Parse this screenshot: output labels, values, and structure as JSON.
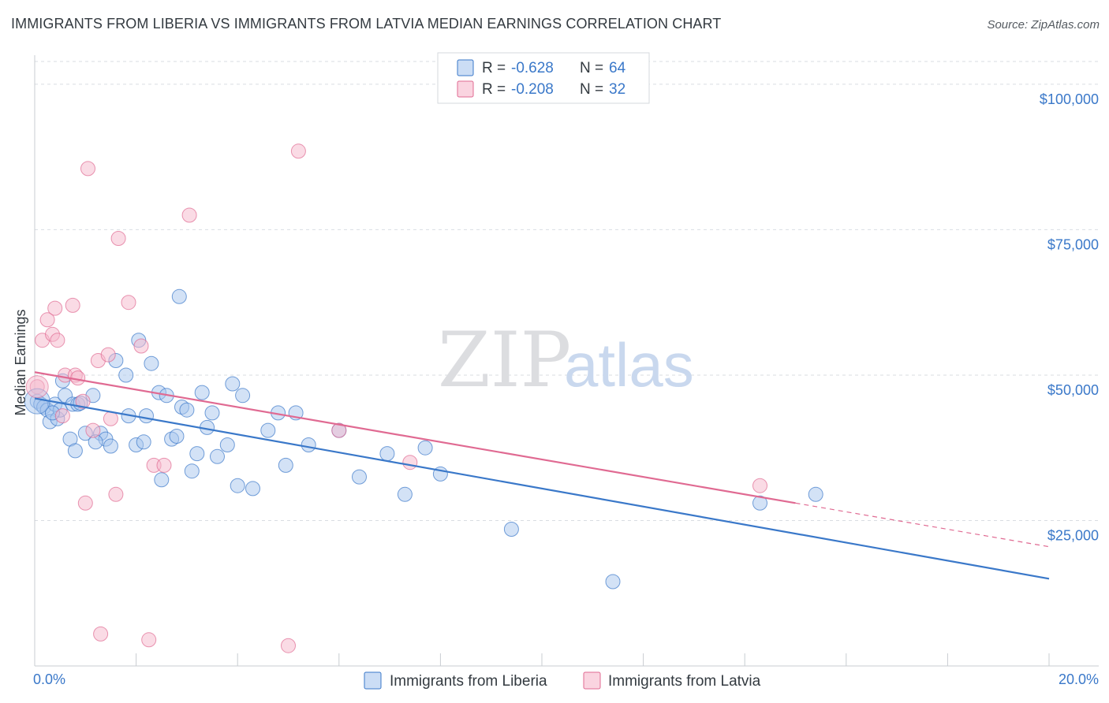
{
  "title": "IMMIGRANTS FROM LIBERIA VS IMMIGRANTS FROM LATVIA MEDIAN EARNINGS CORRELATION CHART",
  "source": "Source: ZipAtlas.com",
  "watermark": {
    "zip": "ZIP",
    "atlas": "atlas"
  },
  "colors": {
    "liberia": "#3a78c9",
    "liberia_fill": "#a8c6ee",
    "latvia": "#e06a92",
    "latvia_fill": "#f6b8cb",
    "tick": "#3a78c9",
    "grid": "#d9dde2"
  },
  "legend_top": [
    {
      "r_label": "R =",
      "r_value": "-0.628",
      "n_label": "N =",
      "n_value": "64"
    },
    {
      "r_label": "R =",
      "r_value": "-0.208",
      "n_label": "N =",
      "n_value": "32"
    }
  ],
  "chart_data": {
    "type": "scatter",
    "xlabel": "",
    "ylabel": "Median Earnings",
    "xlim": [
      0,
      20
    ],
    "ylim": [
      0,
      105000
    ],
    "x_tick_labels": {
      "min": "0.0%",
      "max": "20.0%"
    },
    "y_ticks": [
      {
        "value": 25000,
        "label": "$25,000"
      },
      {
        "value": 50000,
        "label": "$50,000"
      },
      {
        "value": 75000,
        "label": "$75,000"
      },
      {
        "value": 100000,
        "label": "$100,000"
      }
    ],
    "series": [
      {
        "name": "Immigrants from Liberia",
        "r": -0.628,
        "n": 64,
        "trend": {
          "x0": 0,
          "y0": 46000,
          "x1": 20,
          "y1": 15000
        },
        "points": [
          [
            0.05,
            45500
          ],
          [
            0.12,
            45000
          ],
          [
            0.18,
            44500
          ],
          [
            0.25,
            44000
          ],
          [
            0.3,
            42000
          ],
          [
            0.4,
            45000
          ],
          [
            0.45,
            42500
          ],
          [
            0.5,
            44000
          ],
          [
            0.55,
            49000
          ],
          [
            0.6,
            46500
          ],
          [
            0.7,
            39000
          ],
          [
            0.75,
            45000
          ],
          [
            0.8,
            37000
          ],
          [
            0.85,
            45000
          ],
          [
            1.0,
            40000
          ],
          [
            1.15,
            46500
          ],
          [
            1.3,
            40000
          ],
          [
            1.4,
            39000
          ],
          [
            1.5,
            37800
          ],
          [
            1.6,
            52500
          ],
          [
            1.8,
            50000
          ],
          [
            1.85,
            43000
          ],
          [
            2.0,
            38000
          ],
          [
            2.05,
            56000
          ],
          [
            2.15,
            38500
          ],
          [
            2.2,
            43000
          ],
          [
            2.3,
            52000
          ],
          [
            2.45,
            47000
          ],
          [
            2.5,
            32000
          ],
          [
            2.6,
            46500
          ],
          [
            2.7,
            39000
          ],
          [
            2.8,
            39500
          ],
          [
            2.9,
            44500
          ],
          [
            3.0,
            44000
          ],
          [
            3.1,
            33500
          ],
          [
            3.2,
            36500
          ],
          [
            3.3,
            47000
          ],
          [
            3.4,
            41000
          ],
          [
            3.5,
            43500
          ],
          [
            3.6,
            36000
          ],
          [
            3.8,
            38000
          ],
          [
            3.9,
            48500
          ],
          [
            4.0,
            31000
          ],
          [
            4.1,
            46500
          ],
          [
            4.3,
            30500
          ],
          [
            4.6,
            40500
          ],
          [
            4.8,
            43500
          ],
          [
            4.95,
            34500
          ],
          [
            5.15,
            43500
          ],
          [
            5.4,
            38000
          ],
          [
            6.0,
            40500
          ],
          [
            6.4,
            32500
          ],
          [
            6.95,
            36500
          ],
          [
            7.3,
            29500
          ],
          [
            7.7,
            37500
          ],
          [
            8.0,
            33000
          ],
          [
            9.4,
            23500
          ],
          [
            11.4,
            14500
          ],
          [
            14.3,
            28000
          ],
          [
            15.4,
            29500
          ],
          [
            2.85,
            63500
          ],
          [
            0.35,
            43500
          ],
          [
            1.2,
            38500
          ],
          [
            0.9,
            45200
          ]
        ]
      },
      {
        "name": "Immigrants from Latvia",
        "r": -0.208,
        "n": 32,
        "trend": {
          "x0": 0,
          "y0": 50500,
          "x1": 15,
          "y1": 28000,
          "dash_to_x": 20,
          "dash_to_y": 20500
        },
        "points": [
          [
            0.05,
            48000
          ],
          [
            0.15,
            56000
          ],
          [
            0.25,
            59500
          ],
          [
            0.35,
            57000
          ],
          [
            0.4,
            61500
          ],
          [
            0.45,
            56000
          ],
          [
            0.55,
            43000
          ],
          [
            0.6,
            50000
          ],
          [
            0.75,
            62000
          ],
          [
            0.8,
            50000
          ],
          [
            0.85,
            49500
          ],
          [
            0.95,
            45500
          ],
          [
            1.0,
            28000
          ],
          [
            1.05,
            85500
          ],
          [
            1.15,
            40500
          ],
          [
            1.25,
            52500
          ],
          [
            1.3,
            5500
          ],
          [
            1.45,
            53500
          ],
          [
            1.5,
            42500
          ],
          [
            1.6,
            29500
          ],
          [
            1.65,
            73500
          ],
          [
            1.85,
            62500
          ],
          [
            2.1,
            55000
          ],
          [
            2.25,
            4500
          ],
          [
            2.35,
            34500
          ],
          [
            2.55,
            34500
          ],
          [
            3.05,
            77500
          ],
          [
            5.0,
            3500
          ],
          [
            5.2,
            88500
          ],
          [
            6.0,
            40500
          ],
          [
            7.4,
            35000
          ],
          [
            14.3,
            31000
          ]
        ]
      }
    ]
  }
}
